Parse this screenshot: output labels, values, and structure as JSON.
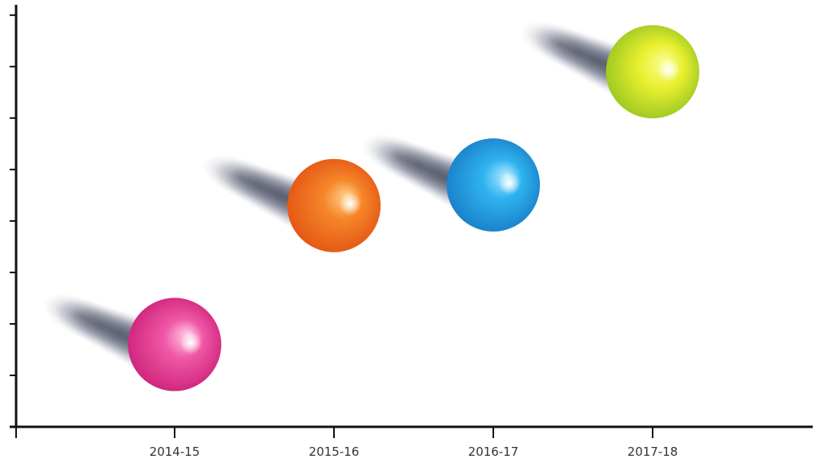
{
  "chart_data": {
    "type": "scatter",
    "title": "",
    "xlabel": "",
    "ylabel": "",
    "categories": [
      "2014-15",
      "2015-16",
      "2016-17",
      "2017-18"
    ],
    "y_ticks": [
      1,
      2,
      3,
      4,
      5,
      6,
      7,
      8
    ],
    "ylim": [
      0,
      8.2
    ],
    "grid": false,
    "legend": "none",
    "series": [
      {
        "values": [
          1.6,
          4.3,
          4.7,
          6.9
        ],
        "colors": [
          "#e8378f",
          "#f26a1b",
          "#1f9ede",
          "#c9e02a"
        ]
      }
    ]
  }
}
